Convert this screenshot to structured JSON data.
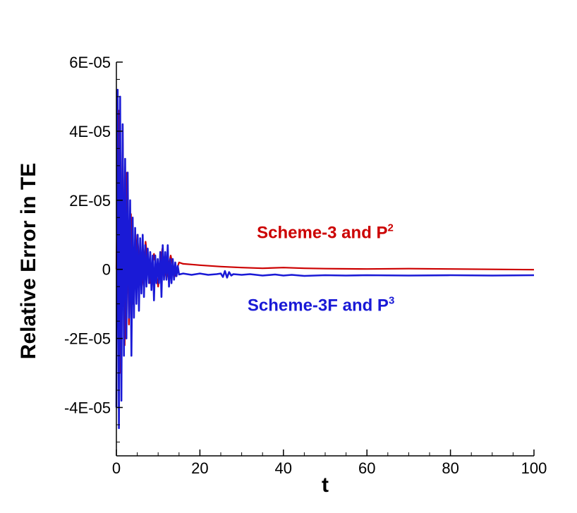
{
  "chart_data": {
    "type": "line",
    "xlabel": "t",
    "ylabel": "Relative Error in TE",
    "xlim": [
      0,
      100
    ],
    "ylim": [
      -5.4e-05,
      6e-05
    ],
    "x_ticks": [
      0,
      20,
      40,
      60,
      80,
      100
    ],
    "x_tick_labels": [
      "0",
      "20",
      "40",
      "60",
      "80",
      "100"
    ],
    "y_ticks": [
      -4e-05,
      -2e-05,
      0,
      2e-05,
      4e-05,
      6e-05
    ],
    "y_tick_labels": [
      "-4E-05",
      "-2E-05",
      "0",
      "2E-05",
      "4E-05",
      "6E-05"
    ],
    "grid": false,
    "legend": "none",
    "series": [
      {
        "color": "#cc0000",
        "x": [
          0,
          0.5,
          1,
          1.5,
          2,
          2.5,
          3,
          3.5,
          4,
          5,
          6,
          7,
          8,
          9,
          10,
          11,
          12,
          13,
          14,
          15,
          16,
          18,
          20,
          25,
          30,
          35,
          40,
          45,
          50,
          60,
          70,
          80,
          90,
          100
        ],
        "y": [
          0,
          4.6e-05,
          -3e-05,
          4.2e-05,
          -2.2e-05,
          2.8e-05,
          -1.6e-05,
          1.6e-05,
          -1e-05,
          1e-05,
          -6e-06,
          8e-06,
          -4e-06,
          4.5e-06,
          -5e-06,
          6e-06,
          -3e-06,
          4e-06,
          -2e-06,
          2e-06,
          1.6e-06,
          1.4e-06,
          1.2e-06,
          8e-07,
          5e-07,
          3e-07,
          5e-07,
          3e-07,
          2e-07,
          1e-07,
          2e-07,
          1e-07,
          0,
          -1e-07
        ]
      },
      {
        "color": "#1a1ad6",
        "x": [
          0,
          0.3,
          0.6,
          0.9,
          1.2,
          1.5,
          1.8,
          2.1,
          2.4,
          2.7,
          3,
          3.3,
          3.6,
          3.9,
          4.2,
          4.5,
          4.8,
          5.1,
          5.4,
          5.7,
          6,
          6.3,
          6.6,
          6.9,
          7.2,
          7.5,
          7.8,
          8.1,
          8.4,
          8.7,
          9,
          9.3,
          9.6,
          9.9,
          10.2,
          10.5,
          10.8,
          11.1,
          11.4,
          11.7,
          12,
          12.3,
          12.6,
          12.9,
          13.2,
          13.5,
          13.8,
          14.1,
          14.4,
          14.7,
          15,
          16,
          18,
          20,
          22,
          24,
          25,
          25.5,
          26,
          26.5,
          27,
          27.5,
          28,
          30,
          32,
          35,
          38,
          40,
          42,
          45,
          50,
          55,
          60,
          70,
          80,
          90,
          100
        ],
        "y": [
          -4e-05,
          5.2e-05,
          -4.6e-05,
          5e-05,
          -3.8e-05,
          4.2e-05,
          -2.5e-05,
          3.2e-05,
          -2e-05,
          2.8e-05,
          -1.4e-05,
          2e-05,
          -2.5e-05,
          1.5e-05,
          -1.4e-05,
          1.2e-05,
          -1e-05,
          1e-05,
          -1.2e-05,
          9e-06,
          -7e-06,
          1e-05,
          -8e-06,
          7e-06,
          -5e-06,
          6e-06,
          -4e-06,
          5e-06,
          -6e-06,
          4e-06,
          -9e-06,
          4e-06,
          -4e-06,
          3e-06,
          -4e-06,
          5e-06,
          -8e-06,
          7e-06,
          -3e-06,
          5e-06,
          -3e-06,
          7e-06,
          -5e-06,
          3e-06,
          -4e-06,
          3e-06,
          -3e-06,
          2e-06,
          -2e-06,
          1e-06,
          -1.5e-06,
          -1.2e-06,
          -1.6e-06,
          -1.2e-06,
          -1.6e-06,
          -1.4e-06,
          -1.2e-06,
          -2.2e-06,
          -5e-07,
          -2.4e-06,
          -8e-07,
          -1.8e-06,
          -1.4e-06,
          -1.6e-06,
          -1.4e-06,
          -1.8e-06,
          -1.5e-06,
          -1.8e-06,
          -1.6e-06,
          -1.9e-06,
          -1.7e-06,
          -1.8e-06,
          -1.7e-06,
          -1.8e-06,
          -1.7e-06,
          -1.8e-06,
          -1.7e-06
        ]
      }
    ],
    "annotations": [
      {
        "text": "Scheme-3 and P",
        "sup": "2",
        "color": "#cc0000",
        "x": 50,
        "y": 9e-06
      },
      {
        "text": "Scheme-3F and P",
        "sup": "3",
        "color": "#1a1ad6",
        "x": 49,
        "y": -1.2e-05
      }
    ]
  }
}
